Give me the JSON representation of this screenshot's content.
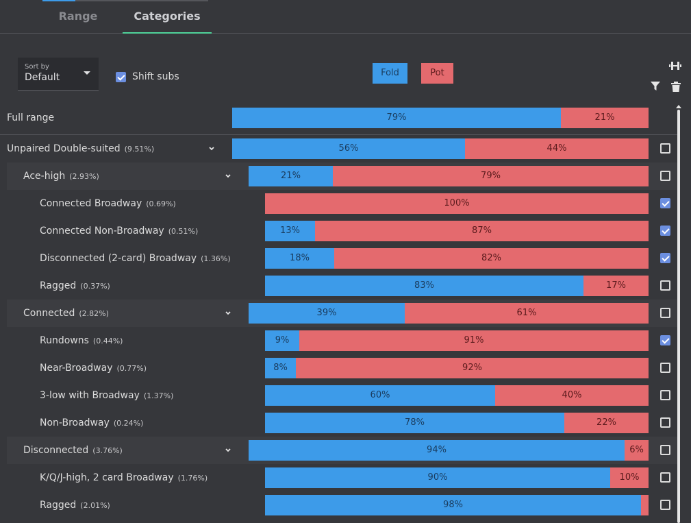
{
  "tabs": [
    {
      "label": "Range",
      "active": false
    },
    {
      "label": "Categories",
      "active": true
    }
  ],
  "controls": {
    "sort_by_label": "Sort by",
    "sort_by_value": "Default",
    "shift_subs_label": "Shift subs",
    "shift_subs_checked": true
  },
  "legend": {
    "fold_label": "Fold",
    "pot_label": "Pot",
    "fold_color": "#3d9be9",
    "pot_color": "#e46a6e"
  },
  "toolbar_icons": [
    "dumbbell-icon",
    "filter-icon",
    "trash-icon"
  ],
  "rows": [
    {
      "label": "Full range",
      "pct": "",
      "level": 0,
      "expandable": false,
      "fold": 79,
      "pot": 21,
      "fold_label": "79%",
      "pot_label": "21%",
      "checkbox": null
    },
    {
      "label": "Unpaired Double-suited",
      "pct": "(9.51%)",
      "level": 0,
      "expandable": true,
      "fold": 56,
      "pot": 44,
      "fold_label": "56%",
      "pot_label": "44%",
      "checkbox": false
    },
    {
      "label": "Ace-high",
      "pct": "(2.93%)",
      "level": 1,
      "expandable": true,
      "fold": 21,
      "pot": 79,
      "fold_label": "21%",
      "pot_label": "79%",
      "checkbox": false
    },
    {
      "label": "Connected Broadway",
      "pct": "(0.69%)",
      "level": 2,
      "expandable": false,
      "fold": 0,
      "pot": 100,
      "fold_label": "",
      "pot_label": "100%",
      "checkbox": true
    },
    {
      "label": "Connected Non-Broadway",
      "pct": "(0.51%)",
      "level": 2,
      "expandable": false,
      "fold": 13,
      "pot": 87,
      "fold_label": "13%",
      "pot_label": "87%",
      "checkbox": true
    },
    {
      "label": "Disconnected (2-card) Broadway",
      "pct": "(1.36%)",
      "level": 2,
      "expandable": false,
      "fold": 18,
      "pot": 82,
      "fold_label": "18%",
      "pot_label": "82%",
      "checkbox": true
    },
    {
      "label": "Ragged",
      "pct": "(0.37%)",
      "level": 2,
      "expandable": false,
      "fold": 83,
      "pot": 17,
      "fold_label": "83%",
      "pot_label": "17%",
      "checkbox": false
    },
    {
      "label": "Connected",
      "pct": "(2.82%)",
      "level": 1,
      "expandable": true,
      "fold": 39,
      "pot": 61,
      "fold_label": "39%",
      "pot_label": "61%",
      "checkbox": false
    },
    {
      "label": "Rundowns",
      "pct": "(0.44%)",
      "level": 2,
      "expandable": false,
      "fold": 9,
      "pot": 91,
      "fold_label": "9%",
      "pot_label": "91%",
      "checkbox": true
    },
    {
      "label": "Near-Broadway",
      "pct": "(0.77%)",
      "level": 2,
      "expandable": false,
      "fold": 8,
      "pot": 92,
      "fold_label": "8%",
      "pot_label": "92%",
      "checkbox": false
    },
    {
      "label": "3-low with Broadway",
      "pct": "(1.37%)",
      "level": 2,
      "expandable": false,
      "fold": 60,
      "pot": 40,
      "fold_label": "60%",
      "pot_label": "40%",
      "checkbox": false
    },
    {
      "label": "Non-Broadway",
      "pct": "(0.24%)",
      "level": 2,
      "expandable": false,
      "fold": 78,
      "pot": 22,
      "fold_label": "78%",
      "pot_label": "22%",
      "checkbox": false
    },
    {
      "label": "Disconnected",
      "pct": "(3.76%)",
      "level": 1,
      "expandable": true,
      "fold": 94,
      "pot": 6,
      "fold_label": "94%",
      "pot_label": "6%",
      "checkbox": false
    },
    {
      "label": "K/Q/J-high, 2 card Broadway",
      "pct": "(1.76%)",
      "level": 2,
      "expandable": false,
      "fold": 90,
      "pot": 10,
      "fold_label": "90%",
      "pot_label": "10%",
      "checkbox": false
    },
    {
      "label": "Ragged",
      "pct": "(2.01%)",
      "level": 2,
      "expandable": false,
      "fold": 98,
      "pot": 2,
      "fold_label": "98%",
      "pot_label": "",
      "checkbox": false
    }
  ]
}
